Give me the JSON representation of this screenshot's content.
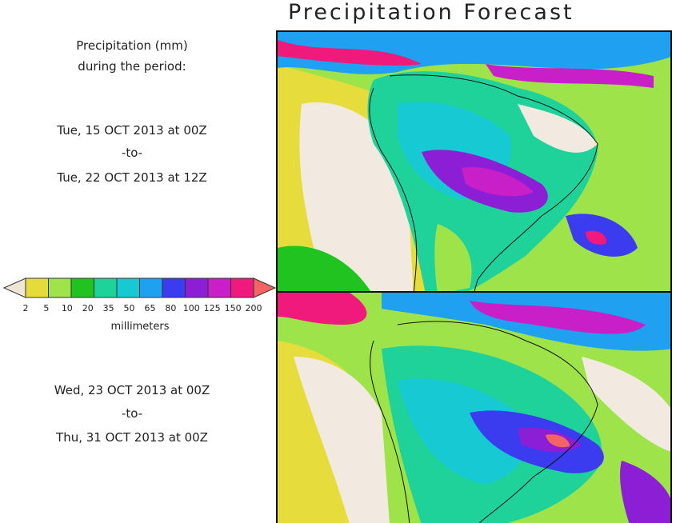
{
  "title": "Precipitation Forecast",
  "info": {
    "line1": "Precipitation (mm)",
    "line2": "during the period:"
  },
  "period1": {
    "start": "Tue, 15 OCT 2013 at 00Z",
    "sep": "-to-",
    "end": "Tue, 22 OCT 2013 at 12Z"
  },
  "period2": {
    "start": "Wed, 23 OCT 2013 at 00Z",
    "sep": "-to-",
    "end": "Thu, 31 OCT 2013 at 00Z"
  },
  "legend": {
    "unit": "millimeters",
    "ticks": [
      "2",
      "5",
      "10",
      "20",
      "35",
      "50",
      "65",
      "80",
      "100",
      "125",
      "150",
      "200"
    ],
    "colors": [
      "#f0e6d8",
      "#e5dc3c",
      "#9ee34a",
      "#21c321",
      "#1fd29a",
      "#17c9d2",
      "#1fa0f0",
      "#3b3bf0",
      "#8c1fd6",
      "#c81fc8",
      "#f0197c",
      "#f56464"
    ]
  },
  "colors": {
    "land_dry": "#f2e9e1",
    "yellow": "#e6dc3c",
    "lightgreen": "#9ee34a",
    "green": "#21c321",
    "teal": "#1fd29a",
    "cyan": "#17c9d2",
    "blue": "#1fa0f0",
    "darkblue": "#3b3bf0",
    "purple": "#8c1fd6",
    "magenta": "#c81fc8",
    "pink": "#f0197c",
    "red": "#f56464"
  }
}
